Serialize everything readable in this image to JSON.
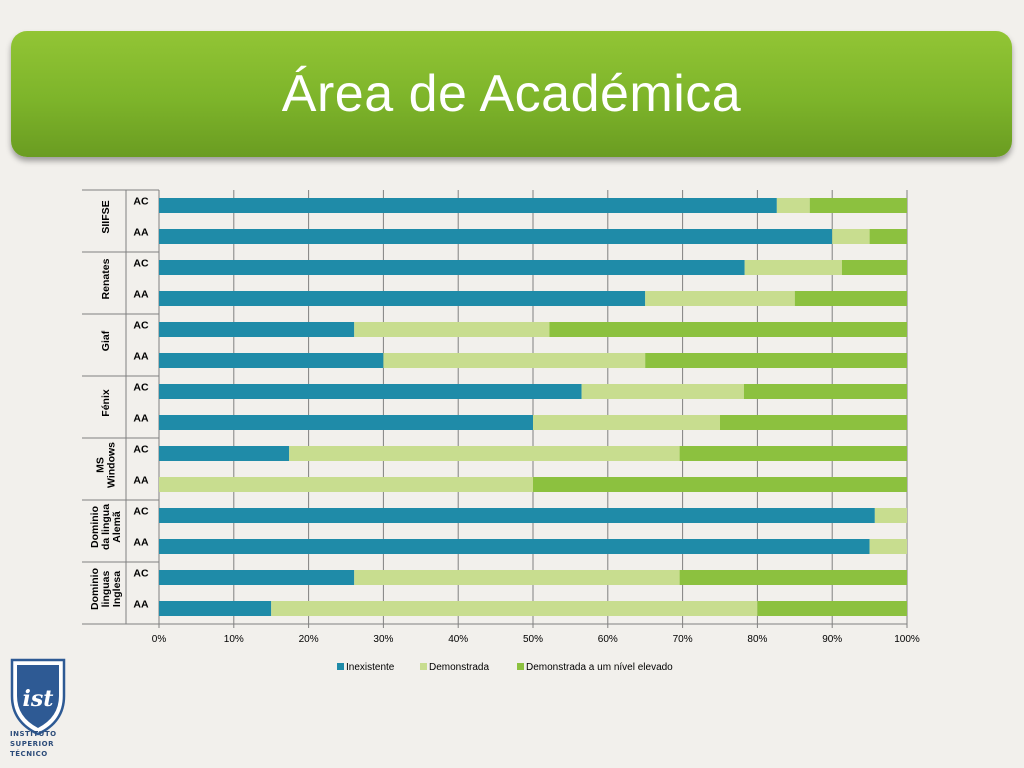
{
  "slide": {
    "title": "Área de Académica"
  },
  "logo": {
    "line1": "INSTITUTO",
    "line2": "SUPERIOR",
    "line3": "TÉCNICO"
  },
  "chart_data": {
    "type": "bar",
    "orientation": "horizontal",
    "stacked": "percent",
    "groups": [
      {
        "name": "SIIFSE",
        "lines": [
          "SIIFSE"
        ],
        "rows": [
          "AC",
          "AA"
        ]
      },
      {
        "name": "Renates",
        "lines": [
          "Renates"
        ],
        "rows": [
          "AC",
          "AA"
        ]
      },
      {
        "name": "Giaf",
        "lines": [
          "Giaf"
        ],
        "rows": [
          "AC",
          "AA"
        ]
      },
      {
        "name": "Fénix",
        "lines": [
          "Fénix"
        ],
        "rows": [
          "AC",
          "AA"
        ]
      },
      {
        "name": "MS Windows",
        "lines": [
          "MS",
          "Windows"
        ],
        "rows": [
          "AC",
          "AA"
        ]
      },
      {
        "name": "Dominio da lingua Alemã",
        "lines": [
          "Dominio",
          "da lingua",
          "Alemã"
        ],
        "rows": [
          "AC",
          "AA"
        ]
      },
      {
        "name": "Dominio linguas Inglesa",
        "lines": [
          "Dominio",
          "linguas",
          "Inglesa"
        ],
        "rows": [
          "AC",
          "AA"
        ]
      }
    ],
    "series": [
      {
        "name": "Inexistente",
        "color": "#1f8ba8",
        "values": [
          82.6,
          90,
          78.3,
          65,
          26.1,
          30,
          56.5,
          50,
          17.4,
          0,
          95.7,
          95,
          26.1,
          15
        ]
      },
      {
        "name": "Demonstrada",
        "color": "#c8dd8f",
        "values": [
          4.4,
          5,
          13.0,
          20,
          26.1,
          35,
          21.7,
          25,
          52.2,
          50,
          4.3,
          5,
          43.5,
          65
        ]
      },
      {
        "name": "Demonstrada a um nível elevado",
        "color": "#8cc13f",
        "values": [
          13.0,
          5,
          8.7,
          15,
          47.8,
          35,
          21.8,
          25,
          30.4,
          50,
          0,
          0,
          30.4,
          20
        ]
      }
    ],
    "xticks": [
      "0%",
      "10%",
      "20%",
      "30%",
      "40%",
      "50%",
      "60%",
      "70%",
      "80%",
      "90%",
      "100%"
    ],
    "xlim": [
      0,
      100
    ],
    "grid": true,
    "legend": "bottom"
  }
}
